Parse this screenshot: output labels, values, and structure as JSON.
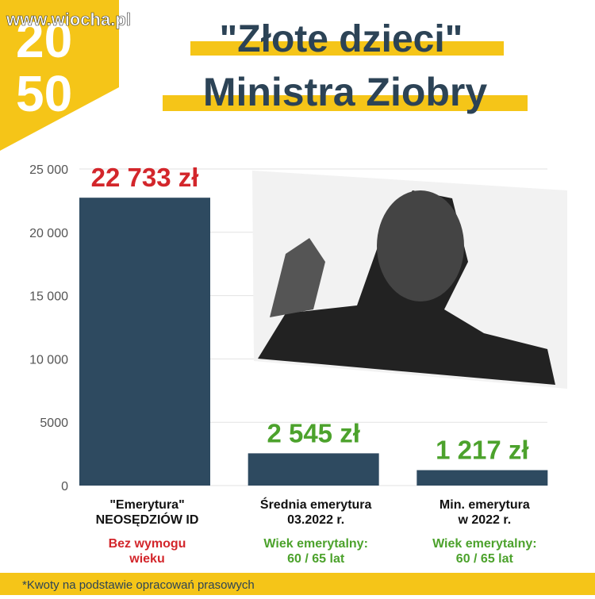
{
  "watermark": "www.wiocha.pl",
  "logo": [
    "20",
    "50"
  ],
  "footnote": "*Kwoty na podstawie opracowań prasowych",
  "chart_data": {
    "type": "bar",
    "title": [
      "\"Złote dzieci\"",
      "Ministra Ziobry"
    ],
    "categories": [
      [
        "\"Emerytura\"",
        "NEOSĘDZIÓW ID"
      ],
      [
        "Średnia emerytura",
        "03.2022 r."
      ],
      [
        "Min. emerytura",
        "w 2022 r."
      ]
    ],
    "notes": [
      [
        "Bez wymogu",
        "wieku"
      ],
      [
        "Wiek emerytalny:",
        "60 / 65 lat"
      ],
      [
        "Wiek emerytalny:",
        "60 / 65 lat"
      ]
    ],
    "values": [
      22733,
      2545,
      1217
    ],
    "value_labels": [
      "22 733 zł",
      "2 545 zł",
      "1 217 zł"
    ],
    "color": "#2e4a60",
    "label_colors": [
      "#d3262b",
      "#4ca22c",
      "#4ca22c"
    ],
    "ylim": [
      0,
      25000
    ],
    "yticks": [
      0,
      5000,
      {
        "value": 10000,
        "label": "10 000"
      },
      {
        "value": 15000,
        "label": "15 000"
      },
      {
        "value": 20000,
        "label": "20 000"
      },
      {
        "value": 25000,
        "label": "25 000"
      }
    ],
    "grid": true
  }
}
